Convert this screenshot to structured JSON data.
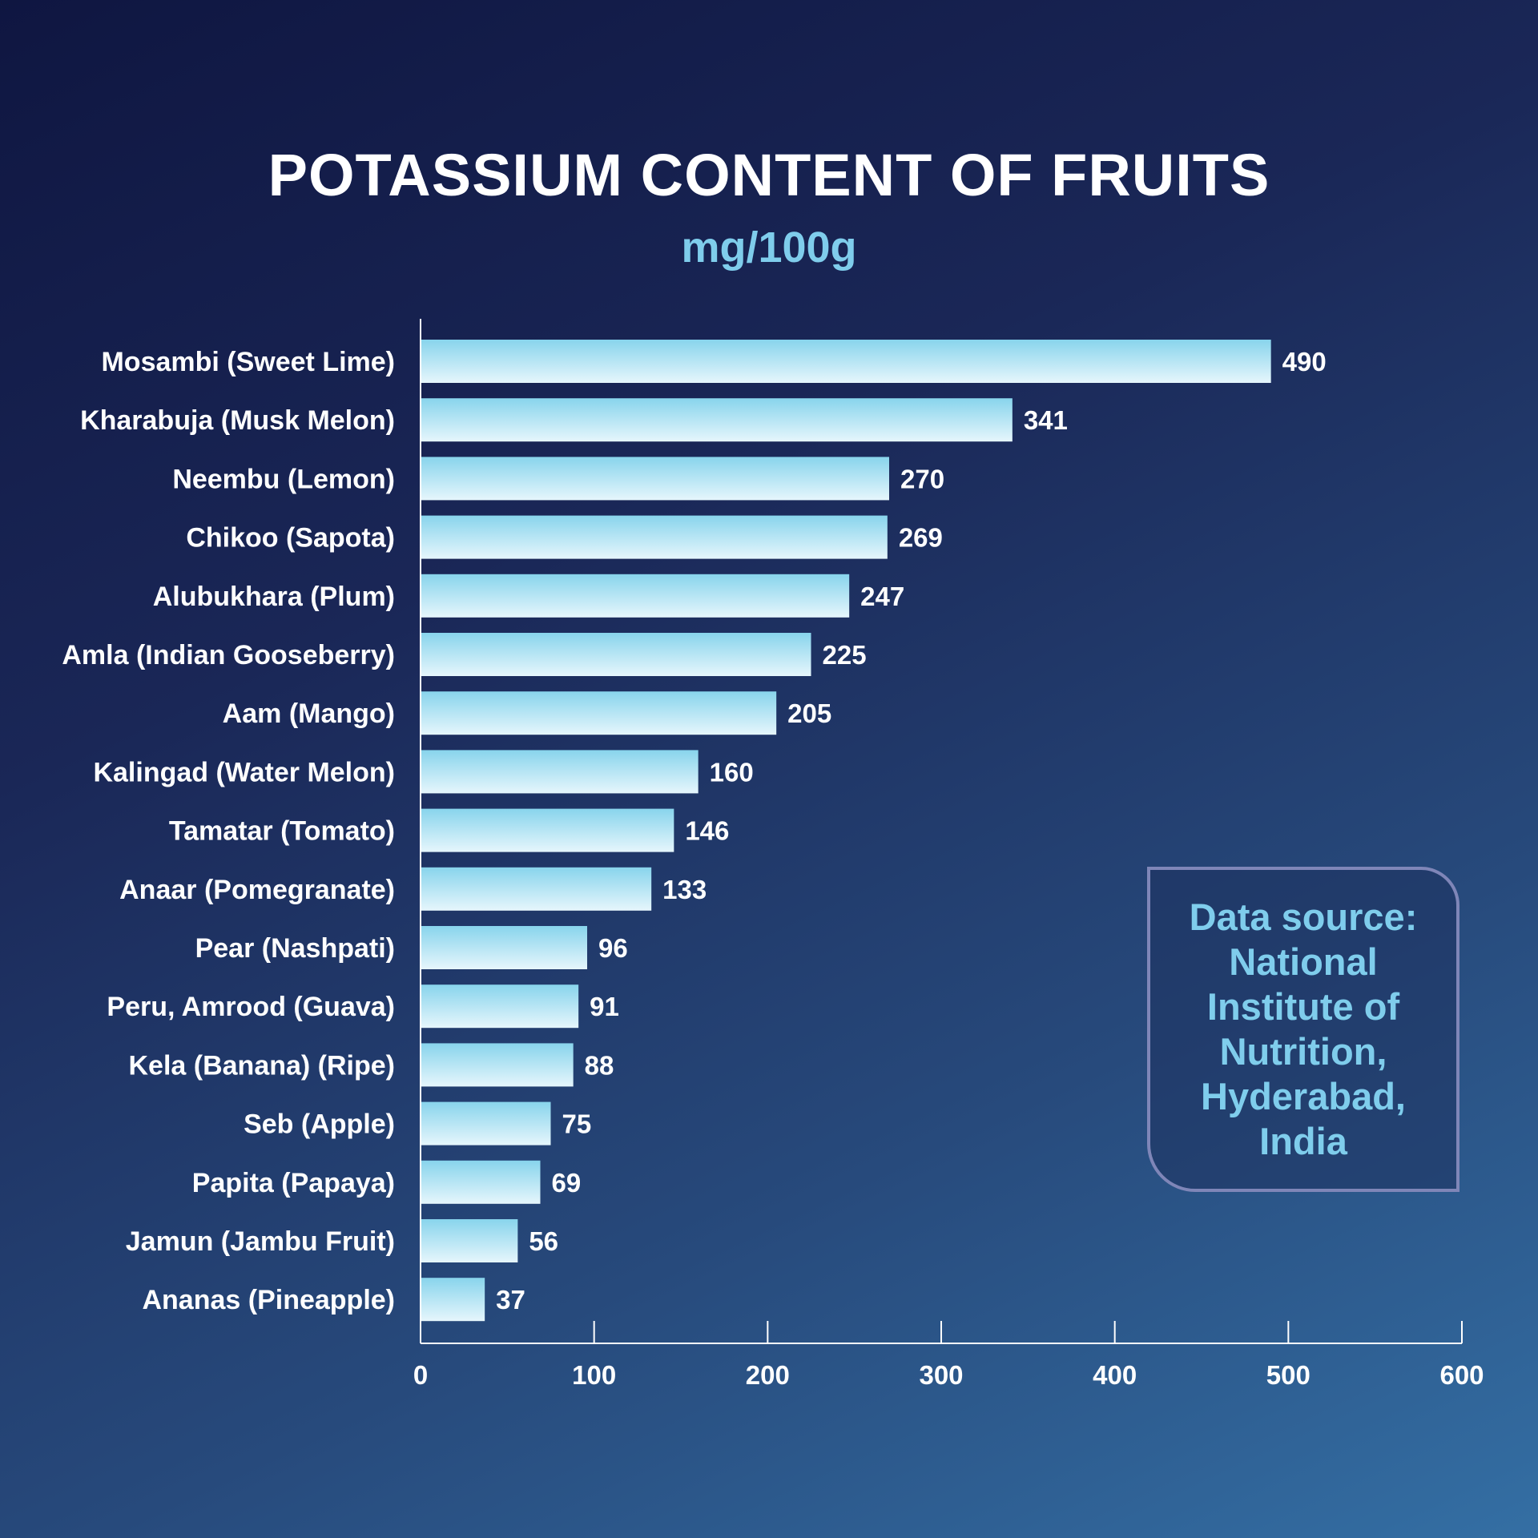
{
  "title": "POTASSIUM CONTENT OF FRUITS",
  "subtitle": "mg/100g",
  "source_box": {
    "lines": [
      "Data source:",
      "National",
      "Institute of",
      "Nutrition,",
      "Hyderabad,",
      "India"
    ]
  },
  "colors": {
    "bar_top": "#88d4ec",
    "bar_bottom": "#e6f6fc",
    "accent": "#7fcdec",
    "text": "#ffffff",
    "axis": "#ffffff"
  },
  "chart_data": {
    "type": "bar",
    "orientation": "horizontal",
    "categories": [
      "Mosambi (Sweet Lime)",
      "Kharabuja (Musk Melon)",
      "Neembu (Lemon)",
      "Chikoo (Sapota)",
      "Alubukhara (Plum)",
      "Amla (Indian Gooseberry)",
      "Aam (Mango)",
      "Kalingad (Water Melon)",
      "Tamatar (Tomato)",
      "Anaar (Pomegranate)",
      "Pear (Nashpati)",
      "Peru, Amrood (Guava)",
      "Kela (Banana) (Ripe)",
      "Seb (Apple)",
      "Papita (Papaya)",
      "Jamun (Jambu Fruit)",
      "Ananas (Pineapple)"
    ],
    "values": [
      490,
      341,
      270,
      269,
      247,
      225,
      205,
      160,
      146,
      133,
      96,
      91,
      88,
      75,
      69,
      56,
      37
    ],
    "title": "POTASSIUM CONTENT OF FRUITS",
    "subtitle": "mg/100g",
    "xlim": [
      0,
      600
    ],
    "xticks": [
      0,
      100,
      200,
      300,
      400,
      500,
      600
    ],
    "grid": false,
    "legend": "none"
  }
}
